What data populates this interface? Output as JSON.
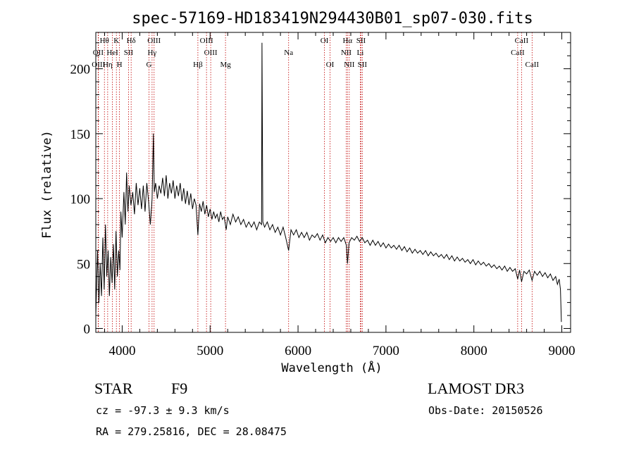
{
  "chart_data": {
    "type": "line",
    "title": "spec-57169-HD183419N294430B01_sp07-030.fits",
    "xlabel": "Wavelength (Å)",
    "ylabel": "Flux (relative)",
    "xlim": [
      3700,
      9100
    ],
    "ylim": [
      -3,
      228
    ],
    "xticks": [
      4000,
      5000,
      6000,
      7000,
      8000,
      9000
    ],
    "yticks": [
      0,
      50,
      100,
      150,
      200
    ],
    "series": [
      {
        "name": "spectrum",
        "points": [
          [
            3700,
            10
          ],
          [
            3720,
            60
          ],
          [
            3735,
            20
          ],
          [
            3750,
            50
          ],
          [
            3765,
            25
          ],
          [
            3780,
            70
          ],
          [
            3795,
            30
          ],
          [
            3810,
            80
          ],
          [
            3825,
            40
          ],
          [
            3840,
            60
          ],
          [
            3855,
            25
          ],
          [
            3870,
            55
          ],
          [
            3885,
            35
          ],
          [
            3900,
            65
          ],
          [
            3915,
            30
          ],
          [
            3930,
            75
          ],
          [
            3945,
            40
          ],
          [
            3960,
            60
          ],
          [
            3975,
            45
          ],
          [
            3985,
            90
          ],
          [
            4000,
            70
          ],
          [
            4020,
            105
          ],
          [
            4035,
            80
          ],
          [
            4050,
            120
          ],
          [
            4065,
            90
          ],
          [
            4080,
            110
          ],
          [
            4100,
            95
          ],
          [
            4120,
            105
          ],
          [
            4140,
            88
          ],
          [
            4160,
            112
          ],
          [
            4180,
            95
          ],
          [
            4200,
            108
          ],
          [
            4220,
            92
          ],
          [
            4240,
            110
          ],
          [
            4260,
            90
          ],
          [
            4280,
            112
          ],
          [
            4300,
            98
          ],
          [
            4320,
            80
          ],
          [
            4340,
            100
          ],
          [
            4355,
            150
          ],
          [
            4365,
            105
          ],
          [
            4380,
            112
          ],
          [
            4400,
            100
          ],
          [
            4420,
            110
          ],
          [
            4440,
            104
          ],
          [
            4460,
            116
          ],
          [
            4480,
            102
          ],
          [
            4500,
            118
          ],
          [
            4520,
            100
          ],
          [
            4540,
            112
          ],
          [
            4560,
            104
          ],
          [
            4580,
            114
          ],
          [
            4600,
            100
          ],
          [
            4620,
            110
          ],
          [
            4640,
            102
          ],
          [
            4660,
            112
          ],
          [
            4680,
            98
          ],
          [
            4700,
            108
          ],
          [
            4720,
            96
          ],
          [
            4740,
            106
          ],
          [
            4760,
            95
          ],
          [
            4780,
            104
          ],
          [
            4800,
            92
          ],
          [
            4820,
            100
          ],
          [
            4840,
            95
          ],
          [
            4861,
            72
          ],
          [
            4880,
            96
          ],
          [
            4900,
            90
          ],
          [
            4920,
            98
          ],
          [
            4940,
            88
          ],
          [
            4960,
            95
          ],
          [
            4980,
            86
          ],
          [
            5000,
            92
          ],
          [
            5020,
            84
          ],
          [
            5040,
            90
          ],
          [
            5060,
            85
          ],
          [
            5080,
            88
          ],
          [
            5100,
            82
          ],
          [
            5120,
            90
          ],
          [
            5140,
            84
          ],
          [
            5160,
            86
          ],
          [
            5183,
            76
          ],
          [
            5200,
            86
          ],
          [
            5230,
            80
          ],
          [
            5260,
            88
          ],
          [
            5290,
            82
          ],
          [
            5320,
            86
          ],
          [
            5350,
            80
          ],
          [
            5380,
            84
          ],
          [
            5410,
            78
          ],
          [
            5440,
            82
          ],
          [
            5470,
            78
          ],
          [
            5500,
            82
          ],
          [
            5530,
            76
          ],
          [
            5560,
            82
          ],
          [
            5585,
            80
          ],
          [
            5590,
            220
          ],
          [
            5600,
            82
          ],
          [
            5620,
            78
          ],
          [
            5650,
            82
          ],
          [
            5680,
            76
          ],
          [
            5710,
            80
          ],
          [
            5740,
            74
          ],
          [
            5770,
            78
          ],
          [
            5800,
            72
          ],
          [
            5830,
            78
          ],
          [
            5860,
            70
          ],
          [
            5893,
            60
          ],
          [
            5920,
            76
          ],
          [
            5950,
            72
          ],
          [
            5980,
            76
          ],
          [
            6010,
            70
          ],
          [
            6040,
            74
          ],
          [
            6070,
            70
          ],
          [
            6100,
            74
          ],
          [
            6130,
            68
          ],
          [
            6160,
            72
          ],
          [
            6190,
            70
          ],
          [
            6220,
            73
          ],
          [
            6250,
            68
          ],
          [
            6280,
            72
          ],
          [
            6310,
            66
          ],
          [
            6340,
            70
          ],
          [
            6370,
            67
          ],
          [
            6400,
            70
          ],
          [
            6430,
            66
          ],
          [
            6460,
            70
          ],
          [
            6490,
            67
          ],
          [
            6520,
            70
          ],
          [
            6550,
            64
          ],
          [
            6563,
            50
          ],
          [
            6580,
            66
          ],
          [
            6610,
            70
          ],
          [
            6640,
            68
          ],
          [
            6670,
            71
          ],
          [
            6700,
            67
          ],
          [
            6730,
            70
          ],
          [
            6760,
            66
          ],
          [
            6790,
            68
          ],
          [
            6820,
            64
          ],
          [
            6850,
            68
          ],
          [
            6880,
            64
          ],
          [
            6910,
            67
          ],
          [
            6940,
            63
          ],
          [
            6970,
            66
          ],
          [
            7000,
            62
          ],
          [
            7030,
            65
          ],
          [
            7060,
            62
          ],
          [
            7090,
            64
          ],
          [
            7120,
            61
          ],
          [
            7150,
            64
          ],
          [
            7180,
            60
          ],
          [
            7210,
            63
          ],
          [
            7240,
            59
          ],
          [
            7270,
            62
          ],
          [
            7300,
            58
          ],
          [
            7330,
            61
          ],
          [
            7360,
            58
          ],
          [
            7390,
            60
          ],
          [
            7420,
            57
          ],
          [
            7450,
            60
          ],
          [
            7480,
            56
          ],
          [
            7510,
            59
          ],
          [
            7540,
            56
          ],
          [
            7570,
            58
          ],
          [
            7600,
            55
          ],
          [
            7630,
            57
          ],
          [
            7660,
            54
          ],
          [
            7690,
            57
          ],
          [
            7720,
            53
          ],
          [
            7750,
            56
          ],
          [
            7780,
            52
          ],
          [
            7810,
            55
          ],
          [
            7840,
            52
          ],
          [
            7870,
            54
          ],
          [
            7900,
            51
          ],
          [
            7930,
            53
          ],
          [
            7960,
            50
          ],
          [
            7990,
            53
          ],
          [
            8020,
            49
          ],
          [
            8050,
            52
          ],
          [
            8080,
            49
          ],
          [
            8110,
            51
          ],
          [
            8140,
            48
          ],
          [
            8170,
            50
          ],
          [
            8200,
            47
          ],
          [
            8230,
            49
          ],
          [
            8260,
            46
          ],
          [
            8290,
            48
          ],
          [
            8320,
            45
          ],
          [
            8350,
            48
          ],
          [
            8380,
            44
          ],
          [
            8410,
            47
          ],
          [
            8440,
            44
          ],
          [
            8470,
            46
          ],
          [
            8498,
            38
          ],
          [
            8520,
            45
          ],
          [
            8542,
            36
          ],
          [
            8570,
            44
          ],
          [
            8600,
            42
          ],
          [
            8630,
            45
          ],
          [
            8662,
            37
          ],
          [
            8690,
            44
          ],
          [
            8720,
            41
          ],
          [
            8750,
            44
          ],
          [
            8780,
            40
          ],
          [
            8810,
            43
          ],
          [
            8840,
            39
          ],
          [
            8870,
            42
          ],
          [
            8900,
            37
          ],
          [
            8930,
            40
          ],
          [
            8950,
            34
          ],
          [
            8970,
            38
          ],
          [
            8985,
            30
          ],
          [
            8995,
            5
          ]
        ]
      }
    ],
    "spectral_lines": [
      {
        "label": "Hθ",
        "wave": 3798,
        "row": 0
      },
      {
        "label": "OII",
        "wave": 3727,
        "row": 1
      },
      {
        "label": "OIII",
        "wave": 3730,
        "row": 2
      },
      {
        "label": "K",
        "wave": 3934,
        "row": 0
      },
      {
        "label": "HeI",
        "wave": 3889,
        "row": 1
      },
      {
        "label": "Hη",
        "wave": 3835,
        "row": 2
      },
      {
        "label": "Hδ",
        "wave": 4102,
        "row": 0
      },
      {
        "label": "SII",
        "wave": 4072,
        "row": 1
      },
      {
        "label": "H",
        "wave": 3969,
        "row": 2
      },
      {
        "label": "OIII",
        "wave": 4363,
        "row": 0
      },
      {
        "label": "Hγ",
        "wave": 4340,
        "row": 1
      },
      {
        "label": "G",
        "wave": 4305,
        "row": 2
      },
      {
        "label": "OIII",
        "wave": 4959,
        "row": 0
      },
      {
        "label": "OIII",
        "wave": 5007,
        "row": 1
      },
      {
        "label": "Hβ",
        "wave": 4861,
        "row": 2
      },
      {
        "label": "Mg",
        "wave": 5175,
        "row": 2
      },
      {
        "label": "Na",
        "wave": 5893,
        "row": 1
      },
      {
        "label": "OI",
        "wave": 6300,
        "row": 0
      },
      {
        "label": "OI",
        "wave": 6364,
        "row": 2
      },
      {
        "label": "Hα",
        "wave": 6563,
        "row": 0
      },
      {
        "label": "SII",
        "wave": 6716,
        "row": 0
      },
      {
        "label": "NII",
        "wave": 6548,
        "row": 1
      },
      {
        "label": "Li",
        "wave": 6708,
        "row": 1
      },
      {
        "label": "NII",
        "wave": 6583,
        "row": 2
      },
      {
        "label": "SII",
        "wave": 6731,
        "row": 2
      },
      {
        "label": "CaII",
        "wave": 8542,
        "row": 0
      },
      {
        "label": "CaII",
        "wave": 8498,
        "row": 1
      },
      {
        "label": "CaII",
        "wave": 8662,
        "row": 2
      }
    ]
  },
  "footer": {
    "object_type": "STAR",
    "subclass": "F9",
    "survey": "LAMOST DR3",
    "redshift": "cz = -97.3 ± 9.3 km/s",
    "obs_date": "Obs-Date: 20150526",
    "coords": "RA = 279.25816, DEC =  28.08475"
  },
  "colors": {
    "line_marker": "#c00000",
    "spectrum": "#000000"
  }
}
